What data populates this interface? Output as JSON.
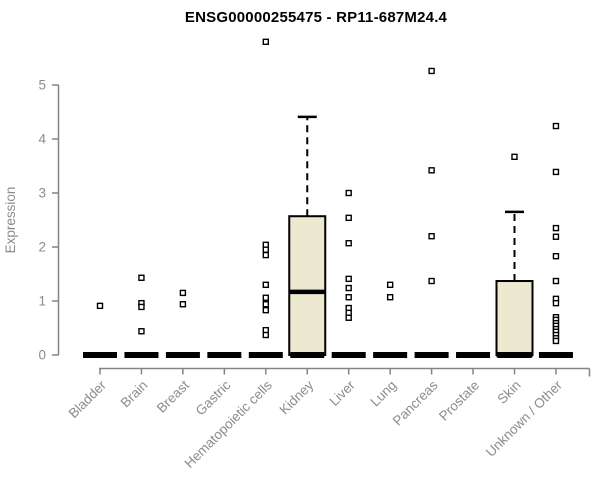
{
  "chart_data": {
    "type": "boxplot",
    "title": "ENSG00000255475 - RP11-687M24.4",
    "ylabel": "Expression",
    "ylim": [
      0,
      5.9
    ],
    "y_ticks": [
      0,
      1,
      2,
      3,
      4,
      5
    ],
    "grid": false,
    "categories": [
      "Bladder",
      "Brain",
      "Breast",
      "Gastric",
      "Hematopoietic cells",
      "Kidney",
      "Liver",
      "Lung",
      "Pancreas",
      "Prostate",
      "Skin",
      "Unknown / Other"
    ],
    "boxes": [
      {
        "category": "Bladder",
        "q1": 0,
        "median": 0,
        "q3": 0,
        "whisker_low": 0,
        "whisker_high": 0,
        "outliers": [
          0.91
        ]
      },
      {
        "category": "Brain",
        "q1": 0,
        "median": 0,
        "q3": 0,
        "whisker_low": 0,
        "whisker_high": 0,
        "outliers": [
          1.43,
          0.96,
          0.89,
          0.44
        ]
      },
      {
        "category": "Breast",
        "q1": 0,
        "median": 0,
        "q3": 0,
        "whisker_low": 0,
        "whisker_high": 0,
        "outliers": [
          1.15,
          0.94
        ]
      },
      {
        "category": "Gastric",
        "q1": 0,
        "median": 0,
        "q3": 0,
        "whisker_low": 0,
        "whisker_high": 0,
        "outliers": []
      },
      {
        "category": "Hematopoietic cells",
        "q1": 0,
        "median": 0,
        "q3": 0,
        "whisker_low": 0,
        "whisker_high": 0,
        "outliers": [
          5.8,
          2.04,
          1.95,
          1.85,
          1.3,
          1.06,
          0.94,
          0.83,
          0.46,
          0.37
        ]
      },
      {
        "category": "Kidney",
        "q1": 0,
        "median": 1.17,
        "q3": 2.57,
        "whisker_low": 0,
        "whisker_high": 4.41,
        "outliers": []
      },
      {
        "category": "Liver",
        "q1": 0,
        "median": 0,
        "q3": 0,
        "whisker_low": 0,
        "whisker_high": 0,
        "outliers": [
          3.0,
          2.54,
          2.07,
          1.41,
          1.24,
          1.07,
          0.87,
          0.78,
          0.69
        ]
      },
      {
        "category": "Lung",
        "q1": 0,
        "median": 0,
        "q3": 0,
        "whisker_low": 0,
        "whisker_high": 0,
        "outliers": [
          1.3,
          1.07
        ]
      },
      {
        "category": "Pancreas",
        "q1": 0,
        "median": 0,
        "q3": 0,
        "whisker_low": 0,
        "whisker_high": 0,
        "outliers": [
          5.26,
          3.42,
          2.2,
          1.37
        ]
      },
      {
        "category": "Prostate",
        "q1": 0,
        "median": 0,
        "q3": 0,
        "whisker_low": 0,
        "whisker_high": 0,
        "outliers": []
      },
      {
        "category": "Skin",
        "q1": 0,
        "median": 0,
        "q3": 1.37,
        "whisker_low": 0,
        "whisker_high": 2.65,
        "outliers": [
          3.67
        ]
      },
      {
        "category": "Unknown / Other",
        "q1": 0,
        "median": 0,
        "q3": 0,
        "whisker_low": 0,
        "whisker_high": 0,
        "outliers": [
          4.24,
          3.39,
          2.35,
          2.19,
          1.83,
          1.37,
          1.04,
          0.96,
          0.7,
          0.65,
          0.59,
          0.54,
          0.48,
          0.43,
          0.37,
          0.31,
          0.26
        ]
      }
    ],
    "legend": null
  },
  "colors": {
    "box_fill": "#ede8d0",
    "box_stroke": "#000000",
    "point_fill": "#ffffff",
    "point_stroke": "#000000",
    "axis": "#848484",
    "label": "#8c8c8c",
    "title": "#000000",
    "background": "#ffffff"
  }
}
